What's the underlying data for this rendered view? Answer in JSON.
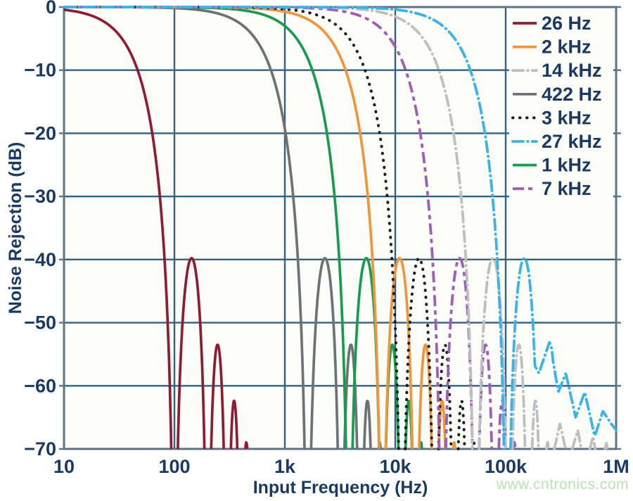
{
  "watermark": "www.cntronics.com",
  "colors": {
    "axis_text": "#1a3a62",
    "grid": "#336180",
    "border": "#5b7487",
    "plot_bg": "#fcfcf9",
    "page_bg": "#ffffff",
    "watermark": "#b9e3b3"
  },
  "chart_data": {
    "type": "line",
    "title": "",
    "xlabel": "Input Frequency (Hz)",
    "ylabel": "Noise Rejection (dB)",
    "x_scale": "log",
    "x_range_hz": [
      10,
      1000000
    ],
    "x_ticks": [
      {
        "value": 10,
        "label": "10"
      },
      {
        "value": 100,
        "label": "100"
      },
      {
        "value": 1000,
        "label": "1k"
      },
      {
        "value": 10000,
        "label": "10k"
      },
      {
        "value": 100000,
        "label": "100k"
      },
      {
        "value": 1000000,
        "label": "1M"
      }
    ],
    "y_range_db": [
      -70,
      0
    ],
    "y_ticks": [
      {
        "value": 0,
        "label": "0"
      },
      {
        "value": -10,
        "label": "−10"
      },
      {
        "value": -20,
        "label": "−20"
      },
      {
        "value": -30,
        "label": "−30"
      },
      {
        "value": -40,
        "label": "−40"
      },
      {
        "value": -50,
        "label": "−50"
      },
      {
        "value": -60,
        "label": "−60"
      },
      {
        "value": -70,
        "label": "−70"
      }
    ],
    "grid": true,
    "legend_position": "top-right",
    "model": "sinc3 low-pass noise rejection: dB(f) = 60*log10(|sin(pi*f/notch_hz)/(pi*f/notch_hz)|), clipped below -70 dB; nulls at integer multiples of notch_hz",
    "model_sidelobe_peaks_db": [
      -39.8,
      -53.7,
      -62.6,
      -69.3
    ],
    "series": [
      {
        "label": "26 Hz",
        "color": "#8e1c33",
        "line_style": "solid",
        "notch_hz": 100
      },
      {
        "label": "2 kHz",
        "color": "#f0953a",
        "line_style": "solid",
        "notch_hz": 7640
      },
      {
        "label": "14 kHz",
        "color": "#bdbfc1",
        "line_style": "dashdot",
        "notch_hz": 53500,
        "visible_tail_points_hz_db": [
          [
            260000,
            -72
          ],
          [
            310000,
            -66
          ],
          [
            370000,
            -72
          ],
          [
            450000,
            -67
          ],
          [
            520000,
            -73
          ],
          [
            620000,
            -68
          ],
          [
            700000,
            -74
          ],
          [
            820000,
            -69
          ],
          [
            900000,
            -75
          ]
        ]
      },
      {
        "label": "422 Hz",
        "color": "#6f7274",
        "line_style": "solid",
        "notch_hz": 1612
      },
      {
        "label": "3 kHz",
        "color": "#1d1d20",
        "line_style": "dotted",
        "notch_hz": 11460
      },
      {
        "label": "27 kHz",
        "color": "#3ab4e8",
        "line_style": "dashdot",
        "notch_hz": 103000,
        "visible_tail_points_hz_db": [
          [
            160000,
            -55
          ],
          [
            200000,
            -58
          ],
          [
            250000,
            -53
          ],
          [
            300000,
            -61
          ],
          [
            350000,
            -58
          ],
          [
            430000,
            -65
          ],
          [
            520000,
            -61
          ],
          [
            640000,
            -68
          ],
          [
            760000,
            -64
          ],
          [
            900000,
            -66
          ],
          [
            1000000,
            -67
          ]
        ]
      },
      {
        "label": "1 kHz",
        "color": "#169c4e",
        "line_style": "solid",
        "notch_hz": 3820
      },
      {
        "label": "7 kHz",
        "color": "#9c5fb5",
        "line_style": "dashed",
        "notch_hz": 26740
      }
    ]
  }
}
